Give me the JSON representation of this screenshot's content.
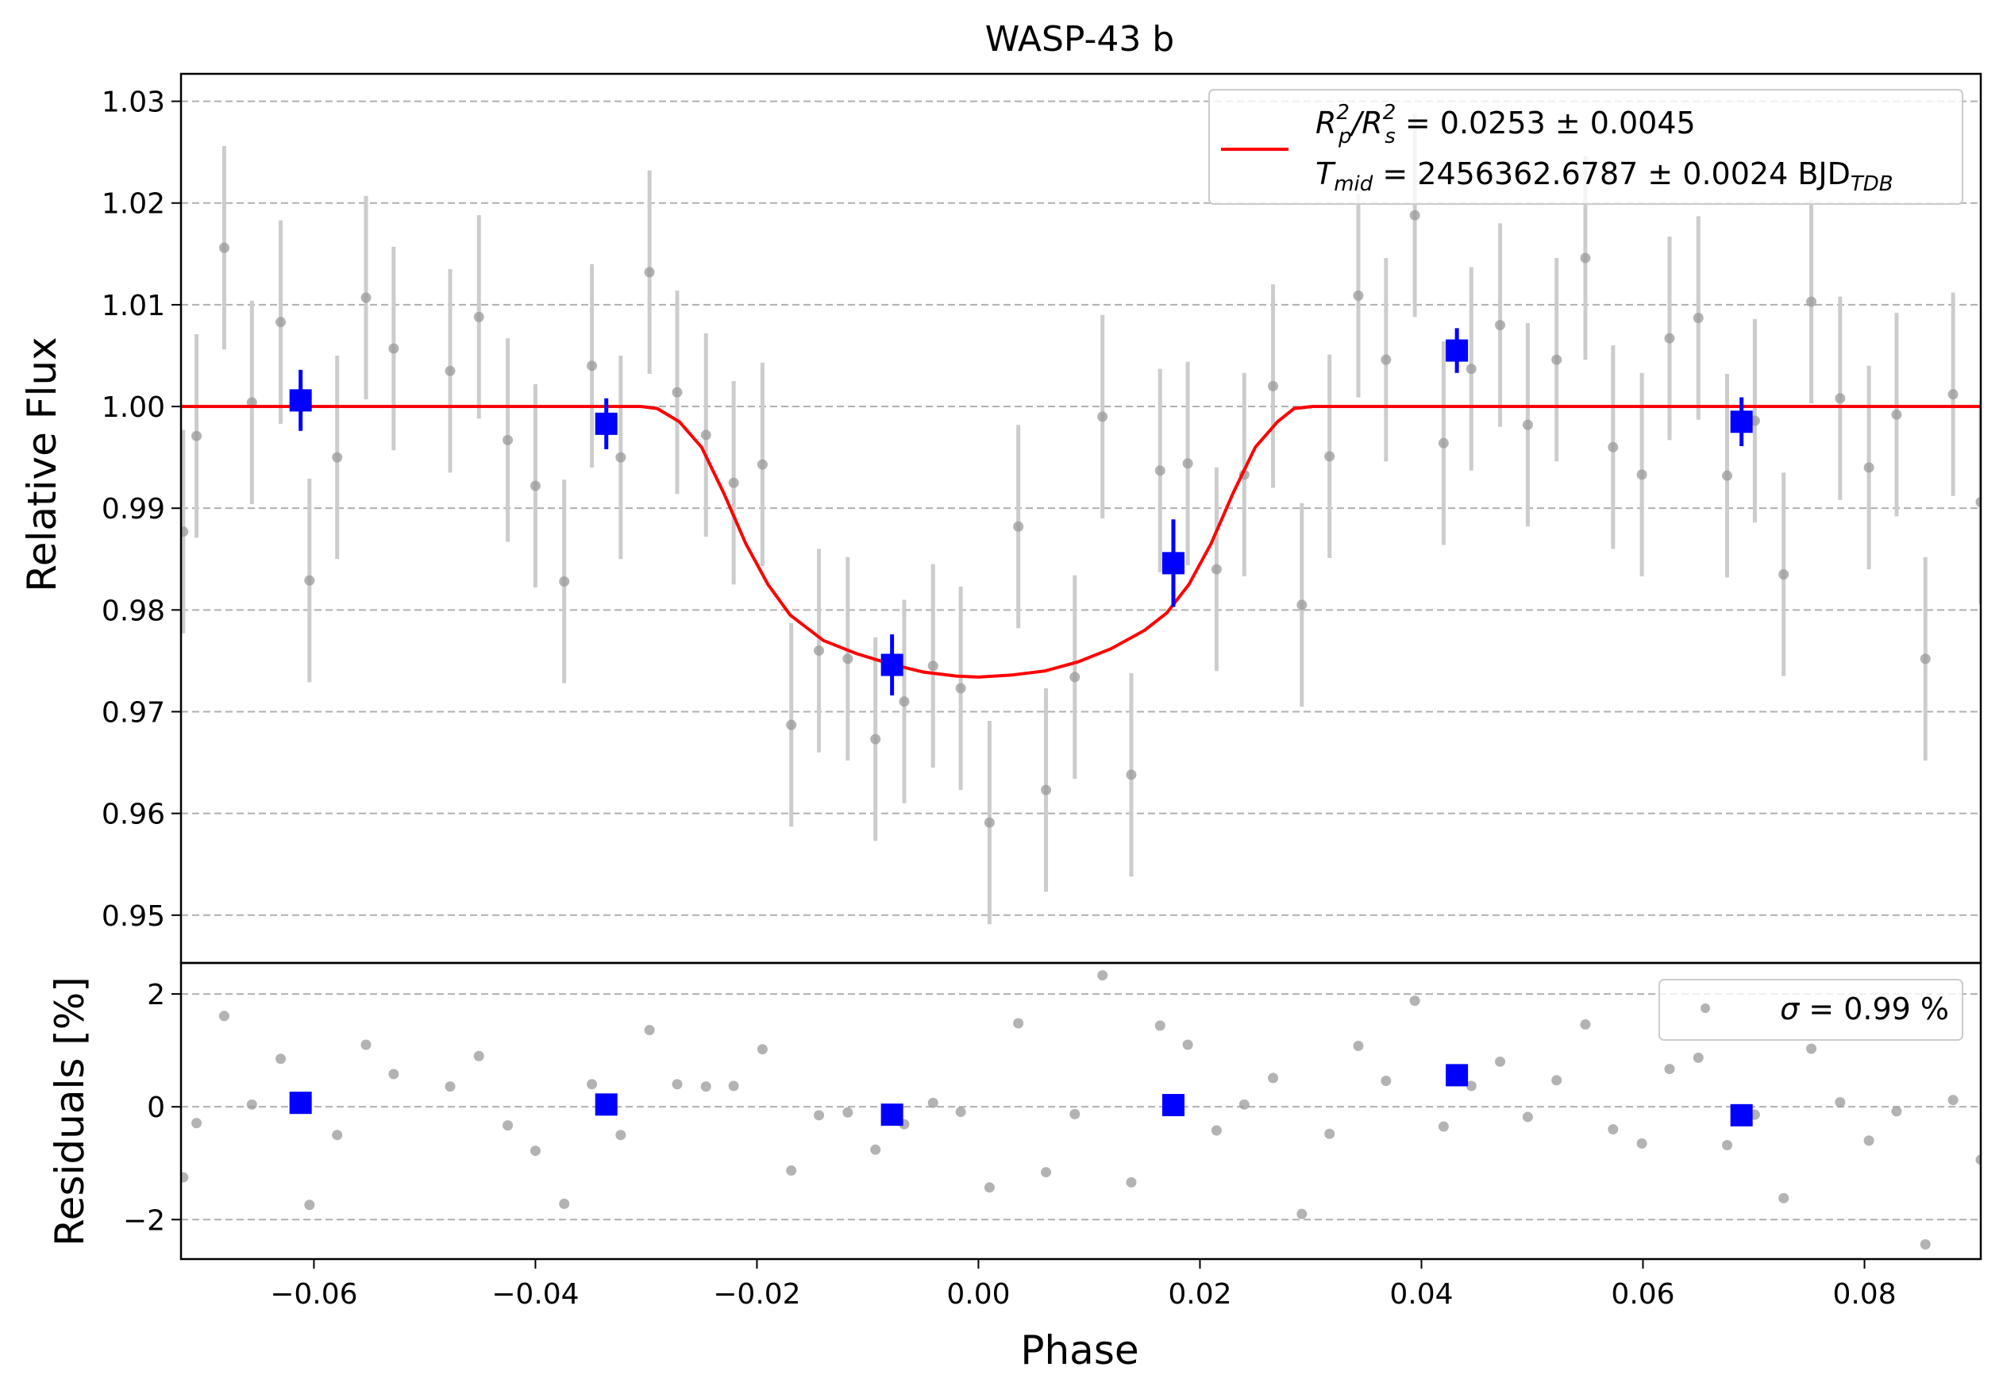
{
  "chart_data": [
    {
      "panel": "main",
      "type": "scatter",
      "title": "WASP-43 b",
      "xlabel": "",
      "ylabel": "Relative Flux",
      "xlim": [
        -0.072,
        0.0905
      ],
      "ylim": [
        0.9453,
        1.0327
      ],
      "yticks": [
        0.95,
        0.96,
        0.97,
        0.98,
        0.99,
        1.0,
        1.01,
        1.02,
        1.03
      ],
      "ytick_labels": [
        "0.95",
        "0.96",
        "0.97",
        "0.98",
        "0.99",
        "1.00",
        "1.01",
        "1.02",
        "1.03"
      ],
      "grid": "horizontal dashed",
      "legend_position": "top-right",
      "legend": {
        "line1": {
          "lhs_base": "R",
          "lhs_sub1": "p",
          "lhs_sup1": "2",
          "lhs_mid": "/R",
          "lhs_sub2": "s",
          "lhs_sup2": "2",
          "rhs": " = 0.0253 ± 0.0045"
        },
        "line2": {
          "lhs_base": "T",
          "lhs_sub": "mid",
          "rhs": " = 2456362.6787 ± 0.0024 BJD",
          "unit_sub": "TDB"
        }
      },
      "model": {
        "name": "transit model",
        "color": "#ff0000",
        "points": [
          [
            -0.072,
            1.0
          ],
          [
            -0.0305,
            1.0
          ],
          [
            -0.029,
            0.9998
          ],
          [
            -0.027,
            0.9985
          ],
          [
            -0.025,
            0.996
          ],
          [
            -0.023,
            0.9915
          ],
          [
            -0.021,
            0.9865
          ],
          [
            -0.019,
            0.9825
          ],
          [
            -0.017,
            0.9795
          ],
          [
            -0.014,
            0.977
          ],
          [
            -0.011,
            0.9757
          ],
          [
            -0.008,
            0.9747
          ],
          [
            -0.005,
            0.9739
          ],
          [
            -0.002,
            0.9735
          ],
          [
            0.0,
            0.9734
          ],
          [
            0.003,
            0.9736
          ],
          [
            0.006,
            0.974
          ],
          [
            0.009,
            0.9749
          ],
          [
            0.012,
            0.9762
          ],
          [
            0.015,
            0.978
          ],
          [
            0.017,
            0.9797
          ],
          [
            0.019,
            0.9825
          ],
          [
            0.021,
            0.9865
          ],
          [
            0.023,
            0.9915
          ],
          [
            0.025,
            0.996
          ],
          [
            0.027,
            0.9985
          ],
          [
            0.0285,
            0.9998
          ],
          [
            0.0302,
            1.0
          ],
          [
            0.0905,
            1.0
          ]
        ]
      },
      "data": {
        "name": "observations",
        "color": "#999999",
        "errorbar_color": "#cccccc",
        "points": [
          {
            "x": -0.0718,
            "y": 0.9877,
            "err": 0.01
          },
          {
            "x": -0.0706,
            "y": 0.9971,
            "err": 0.01
          },
          {
            "x": -0.0681,
            "y": 1.0156,
            "err": 0.01
          },
          {
            "x": -0.0656,
            "y": 1.0004,
            "err": 0.01
          },
          {
            "x": -0.063,
            "y": 1.0083,
            "err": 0.01
          },
          {
            "x": -0.0604,
            "y": 0.9829,
            "err": 0.01
          },
          {
            "x": -0.0579,
            "y": 0.995,
            "err": 0.01
          },
          {
            "x": -0.0553,
            "y": 1.0107,
            "err": 0.01
          },
          {
            "x": -0.0528,
            "y": 1.0057,
            "err": 0.01
          },
          {
            "x": -0.0477,
            "y": 1.0035,
            "err": 0.01
          },
          {
            "x": -0.0451,
            "y": 1.0088,
            "err": 0.01
          },
          {
            "x": -0.0425,
            "y": 0.9967,
            "err": 0.01
          },
          {
            "x": -0.04,
            "y": 0.9922,
            "err": 0.01
          },
          {
            "x": -0.0374,
            "y": 0.9828,
            "err": 0.01
          },
          {
            "x": -0.0349,
            "y": 1.004,
            "err": 0.01
          },
          {
            "x": -0.0323,
            "y": 0.995,
            "err": 0.01
          },
          {
            "x": -0.0297,
            "y": 1.0132,
            "err": 0.01
          },
          {
            "x": -0.0272,
            "y": 1.0014,
            "err": 0.01
          },
          {
            "x": -0.0246,
            "y": 0.9972,
            "err": 0.01
          },
          {
            "x": -0.0221,
            "y": 0.9925,
            "err": 0.01
          },
          {
            "x": -0.0195,
            "y": 0.9943,
            "err": 0.01
          },
          {
            "x": -0.0169,
            "y": 0.9687,
            "err": 0.01
          },
          {
            "x": -0.0144,
            "y": 0.976,
            "err": 0.01
          },
          {
            "x": -0.0118,
            "y": 0.9752,
            "err": 0.01
          },
          {
            "x": -0.0093,
            "y": 0.9673,
            "err": 0.01
          },
          {
            "x": -0.0067,
            "y": 0.971,
            "err": 0.01
          },
          {
            "x": -0.0041,
            "y": 0.9745,
            "err": 0.01
          },
          {
            "x": -0.0016,
            "y": 0.9723,
            "err": 0.01
          },
          {
            "x": 0.001,
            "y": 0.9591,
            "err": 0.01
          },
          {
            "x": 0.0036,
            "y": 0.9882,
            "err": 0.01
          },
          {
            "x": 0.0061,
            "y": 0.9623,
            "err": 0.01
          },
          {
            "x": 0.0087,
            "y": 0.9734,
            "err": 0.01
          },
          {
            "x": 0.0112,
            "y": 0.999,
            "err": 0.01
          },
          {
            "x": 0.0138,
            "y": 0.9638,
            "err": 0.01
          },
          {
            "x": 0.0164,
            "y": 0.9937,
            "err": 0.01
          },
          {
            "x": 0.0189,
            "y": 0.9944,
            "err": 0.01
          },
          {
            "x": 0.0215,
            "y": 0.984,
            "err": 0.01
          },
          {
            "x": 0.024,
            "y": 0.9933,
            "err": 0.01
          },
          {
            "x": 0.0266,
            "y": 1.002,
            "err": 0.01
          },
          {
            "x": 0.0292,
            "y": 0.9805,
            "err": 0.01
          },
          {
            "x": 0.0317,
            "y": 0.9951,
            "err": 0.01
          },
          {
            "x": 0.0343,
            "y": 1.0109,
            "err": 0.01
          },
          {
            "x": 0.0368,
            "y": 1.0046,
            "err": 0.01
          },
          {
            "x": 0.0394,
            "y": 1.0188,
            "err": 0.01
          },
          {
            "x": 0.042,
            "y": 0.9964,
            "err": 0.01
          },
          {
            "x": 0.0445,
            "y": 1.0037,
            "err": 0.01
          },
          {
            "x": 0.0471,
            "y": 1.008,
            "err": 0.01
          },
          {
            "x": 0.0496,
            "y": 0.9982,
            "err": 0.01
          },
          {
            "x": 0.0522,
            "y": 1.0046,
            "err": 0.01
          },
          {
            "x": 0.0548,
            "y": 1.0146,
            "err": 0.01
          },
          {
            "x": 0.0573,
            "y": 0.996,
            "err": 0.01
          },
          {
            "x": 0.0599,
            "y": 0.9933,
            "err": 0.01
          },
          {
            "x": 0.0624,
            "y": 1.0067,
            "err": 0.01
          },
          {
            "x": 0.065,
            "y": 1.0087,
            "err": 0.01
          },
          {
            "x": 0.0676,
            "y": 0.9932,
            "err": 0.01
          },
          {
            "x": 0.0701,
            "y": 0.9986,
            "err": 0.01
          },
          {
            "x": 0.0727,
            "y": 0.9835,
            "err": 0.01
          },
          {
            "x": 0.0752,
            "y": 1.0103,
            "err": 0.01
          },
          {
            "x": 0.0778,
            "y": 1.0008,
            "err": 0.01
          },
          {
            "x": 0.0804,
            "y": 0.994,
            "err": 0.01
          },
          {
            "x": 0.0829,
            "y": 0.9992,
            "err": 0.01
          },
          {
            "x": 0.0855,
            "y": 0.9752,
            "err": 0.01
          },
          {
            "x": 0.088,
            "y": 1.0012,
            "err": 0.01
          },
          {
            "x": 0.0905,
            "y": 0.9906,
            "err": 0.01
          }
        ]
      },
      "binned": {
        "name": "binned",
        "color": "#0000ff",
        "points": [
          {
            "x": -0.0612,
            "y": 1.0006,
            "err": 0.003
          },
          {
            "x": -0.0336,
            "y": 0.9983,
            "err": 0.0025
          },
          {
            "x": -0.0078,
            "y": 0.9746,
            "err": 0.003
          },
          {
            "x": 0.0176,
            "y": 0.9846,
            "err": 0.0043
          },
          {
            "x": 0.0432,
            "y": 1.0055,
            "err": 0.0022
          },
          {
            "x": 0.0689,
            "y": 0.9985,
            "err": 0.0024
          }
        ]
      }
    },
    {
      "panel": "residuals",
      "type": "scatter",
      "xlabel": "Phase",
      "ylabel": "Residuals [%]",
      "xlim": [
        -0.072,
        0.0905
      ],
      "ylim": [
        -2.7,
        2.55
      ],
      "yticks": [
        -2,
        0,
        2
      ],
      "ytick_labels": [
        "−2",
        "0",
        "2"
      ],
      "xticks": [
        -0.06,
        -0.04,
        -0.02,
        0.0,
        0.02,
        0.04,
        0.06,
        0.08
      ],
      "xtick_labels": [
        "−0.06",
        "−0.04",
        "−0.02",
        "0.00",
        "0.02",
        "0.04",
        "0.06",
        "0.08"
      ],
      "grid": "horizontal dashed",
      "legend_position": "top-right",
      "legend": {
        "sigma_symbol": "σ",
        "text": " = 0.99 %"
      },
      "data": {
        "color": "#999999",
        "points": [
          [
            -0.0718,
            -1.25
          ],
          [
            -0.0706,
            -0.29
          ],
          [
            -0.0681,
            1.61
          ],
          [
            -0.0656,
            0.04
          ],
          [
            -0.063,
            0.85
          ],
          [
            -0.0604,
            -1.74
          ],
          [
            -0.0579,
            -0.5
          ],
          [
            -0.0553,
            1.1
          ],
          [
            -0.0528,
            0.58
          ],
          [
            -0.0477,
            0.36
          ],
          [
            -0.0451,
            0.9
          ],
          [
            -0.0425,
            -0.33
          ],
          [
            -0.04,
            -0.78
          ],
          [
            -0.0374,
            -1.72
          ],
          [
            -0.0349,
            0.4
          ],
          [
            -0.0323,
            -0.5
          ],
          [
            -0.0297,
            1.36
          ],
          [
            -0.0272,
            0.4
          ],
          [
            -0.0246,
            0.36
          ],
          [
            -0.0221,
            0.37
          ],
          [
            -0.0195,
            1.02
          ],
          [
            -0.0169,
            -1.13
          ],
          [
            -0.0144,
            -0.15
          ],
          [
            -0.0118,
            -0.1
          ],
          [
            -0.0093,
            -0.76
          ],
          [
            -0.0067,
            -0.31
          ],
          [
            -0.0041,
            0.07
          ],
          [
            -0.0016,
            -0.09
          ],
          [
            0.001,
            -1.43
          ],
          [
            0.0036,
            1.48
          ],
          [
            0.0061,
            -1.16
          ],
          [
            0.0087,
            -0.13
          ],
          [
            0.0112,
            2.33
          ],
          [
            0.0138,
            -1.34
          ],
          [
            0.0164,
            1.44
          ],
          [
            0.0189,
            1.1
          ],
          [
            0.0215,
            -0.42
          ],
          [
            0.024,
            0.04
          ],
          [
            0.0266,
            0.51
          ],
          [
            0.0292,
            -1.9
          ],
          [
            0.0317,
            -0.48
          ],
          [
            0.0343,
            1.08
          ],
          [
            0.0368,
            0.46
          ],
          [
            0.0394,
            1.88
          ],
          [
            0.042,
            -0.35
          ],
          [
            0.0445,
            0.37
          ],
          [
            0.0471,
            0.8
          ],
          [
            0.0496,
            -0.18
          ],
          [
            0.0522,
            0.47
          ],
          [
            0.0548,
            1.46
          ],
          [
            0.0573,
            -0.4
          ],
          [
            0.0599,
            -0.65
          ],
          [
            0.0624,
            0.67
          ],
          [
            0.065,
            0.87
          ],
          [
            0.0676,
            -0.68
          ],
          [
            0.0701,
            -0.14
          ],
          [
            0.0727,
            -1.62
          ],
          [
            0.0752,
            1.03
          ],
          [
            0.0778,
            0.08
          ],
          [
            0.0804,
            -0.6
          ],
          [
            0.0829,
            -0.08
          ],
          [
            0.0855,
            -2.44
          ],
          [
            0.088,
            0.12
          ],
          [
            0.0905,
            -0.94
          ]
        ]
      },
      "binned": {
        "color": "#0000ff",
        "points": [
          [
            -0.0612,
            0.07
          ],
          [
            -0.0336,
            0.04
          ],
          [
            -0.0078,
            -0.14
          ],
          [
            0.0176,
            0.03
          ],
          [
            0.0432,
            0.56
          ],
          [
            0.0689,
            -0.15
          ]
        ]
      }
    }
  ]
}
